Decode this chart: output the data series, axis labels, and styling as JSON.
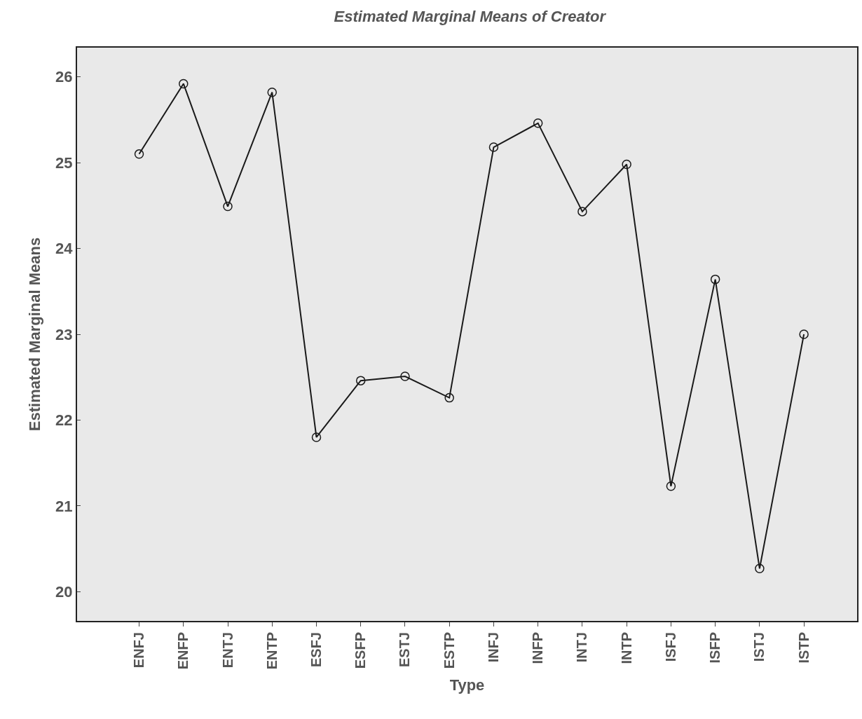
{
  "chart_data": {
    "type": "line",
    "title": "Estimated Marginal Means of Creator",
    "xlabel": "Type",
    "ylabel": "Estimated Marginal Means",
    "categories": [
      "ENFJ",
      "ENFP",
      "ENTJ",
      "ENTP",
      "ESFJ",
      "ESFP",
      "ESTJ",
      "ESTP",
      "INFJ",
      "INFP",
      "INTJ",
      "INTP",
      "ISFJ",
      "ISFP",
      "ISTJ",
      "ISTP"
    ],
    "series": [
      {
        "color": "#1a1a1a",
        "values": [
          25.1,
          25.92,
          24.49,
          25.82,
          21.8,
          22.46,
          22.51,
          22.26,
          25.18,
          25.46,
          24.43,
          24.98,
          21.23,
          23.64,
          20.27,
          23.0
        ]
      }
    ],
    "ylim": [
      19.66,
      26.34
    ],
    "yticks": [
      20,
      21,
      22,
      23,
      24,
      25,
      26
    ],
    "grid": false,
    "marker": "circle",
    "line_style": "solid"
  }
}
